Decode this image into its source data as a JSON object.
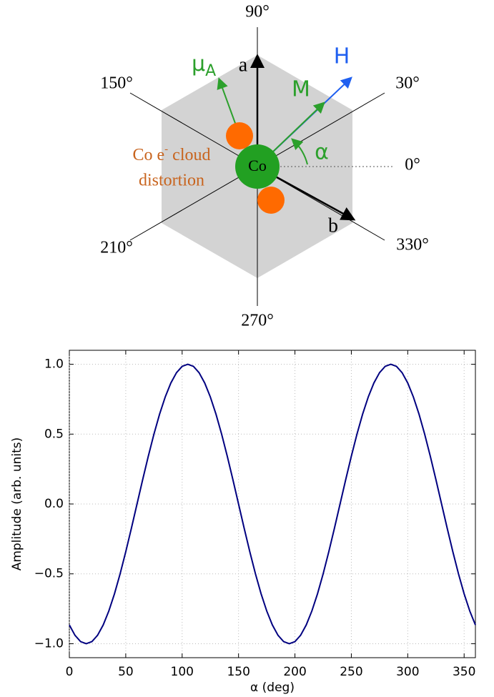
{
  "diagram": {
    "angle_labels": [
      "90°",
      "30°",
      "0°",
      "330°",
      "270°",
      "210°",
      "150°"
    ],
    "axis_a": "a",
    "axis_b": "b",
    "field": "H",
    "magnetization": "M",
    "moment": {
      "symbol": "μ",
      "subscript": "A"
    },
    "angle": "α",
    "atom": "Co",
    "cloud_label": {
      "prefix": "Co e",
      "superscript": "-",
      "suffix": "cloud",
      "line2": "distortion"
    }
  },
  "chart_data": {
    "type": "line",
    "x_label": "α (deg)",
    "y_label": "Amplitude (arb. units)",
    "x": [
      0,
      5,
      10,
      15,
      20,
      25,
      30,
      35,
      40,
      45,
      50,
      55,
      60,
      65,
      70,
      75,
      80,
      85,
      90,
      95,
      100,
      105,
      110,
      115,
      120,
      125,
      130,
      135,
      140,
      145,
      150,
      155,
      160,
      165,
      170,
      175,
      180,
      185,
      190,
      195,
      200,
      205,
      210,
      215,
      220,
      225,
      230,
      235,
      240,
      245,
      250,
      255,
      260,
      265,
      270,
      275,
      280,
      285,
      290,
      295,
      300,
      305,
      310,
      315,
      320,
      325,
      330,
      335,
      340,
      345,
      350,
      355,
      360
    ],
    "series": [
      {
        "color": "#000080",
        "values": [
          -0.866,
          -0.94,
          -0.985,
          -1,
          -0.985,
          -0.94,
          -0.866,
          -0.766,
          -0.643,
          -0.5,
          -0.342,
          -0.174,
          0,
          0.174,
          0.342,
          0.5,
          0.643,
          0.766,
          0.866,
          0.94,
          0.985,
          1,
          0.985,
          0.94,
          0.866,
          0.766,
          0.643,
          0.5,
          0.342,
          0.174,
          0,
          -0.174,
          -0.342,
          -0.5,
          -0.643,
          -0.766,
          -0.866,
          -0.94,
          -0.985,
          -1,
          -0.985,
          -0.94,
          -0.866,
          -0.766,
          -0.643,
          -0.5,
          -0.342,
          -0.174,
          0,
          0.174,
          0.342,
          0.5,
          0.643,
          0.766,
          0.866,
          0.94,
          0.985,
          1,
          0.985,
          0.94,
          0.866,
          0.766,
          0.643,
          0.5,
          0.342,
          0.174,
          0,
          -0.174,
          -0.342,
          -0.5,
          -0.643,
          -0.766,
          -0.866
        ]
      }
    ],
    "xlim": [
      0,
      360
    ],
    "xticks": [
      0,
      50,
      100,
      150,
      200,
      250,
      300,
      350
    ],
    "ylim": [
      -1.1,
      1.1
    ],
    "yticks": [
      {
        "value": -1,
        "label": "−1.0"
      },
      {
        "value": -0.5,
        "label": "−0.5"
      },
      {
        "value": 0,
        "label": "0.0"
      },
      {
        "value": 0.5,
        "label": "0.5"
      },
      {
        "value": 1,
        "label": "1.0"
      }
    ],
    "grid": true
  }
}
